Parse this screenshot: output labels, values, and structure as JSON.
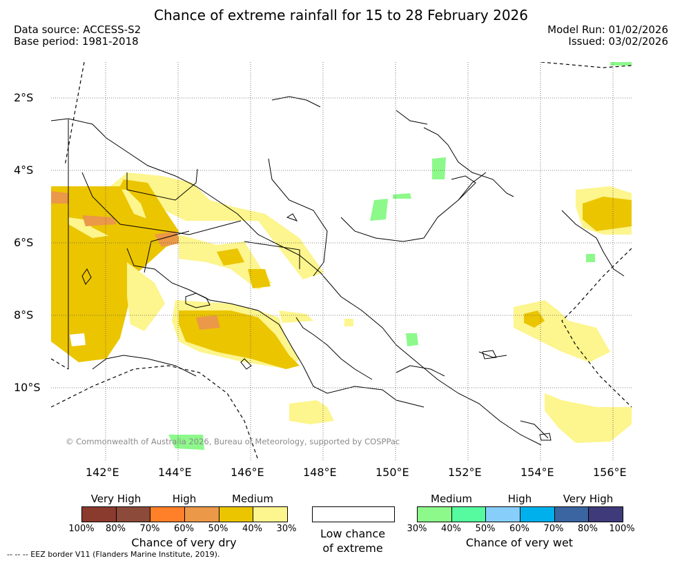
{
  "header": {
    "title": "Chance of extreme rainfall for 15 to 28 February 2026",
    "data_source": "Data source: ACCESS-S2",
    "base_period": "Base period: 1981-2018",
    "model_run": "Model Run: 01/02/2026",
    "issued": "Issued: 03/02/2026"
  },
  "map": {
    "lat_labels": [
      "2°S",
      "4°S",
      "6°S",
      "8°S",
      "10°S"
    ],
    "lon_labels": [
      "142°E",
      "144°E",
      "146°E",
      "148°E",
      "150°E",
      "152°E",
      "154°E",
      "156°E"
    ],
    "copyright": "© Commonwealth of Australia 2026, Bureau of Meteorology, supported by COSPPac"
  },
  "legend": {
    "dry": {
      "levels": [
        "Very High",
        "High",
        "Medium"
      ],
      "colors": [
        "#8b3a2e",
        "#8b4a3a",
        "#ff8029",
        "#eb9848",
        "#ebc500",
        "#fdf58d"
      ],
      "ticks": [
        "100%",
        "80%",
        "70%",
        "60%",
        "50%",
        "40%",
        "30%"
      ],
      "caption": "Chance of very dry"
    },
    "low": {
      "caption_line1": "Low chance",
      "caption_line2": "of extreme"
    },
    "wet": {
      "levels": [
        "Medium",
        "High",
        "Very High"
      ],
      "colors": [
        "#8cf98a",
        "#55fb9e",
        "#87cefa",
        "#00b0ed",
        "#3a65a0",
        "#3f3b7b"
      ],
      "ticks": [
        "30%",
        "40%",
        "50%",
        "60%",
        "70%",
        "80%",
        "100%"
      ],
      "caption": "Chance of very wet"
    }
  },
  "footnote": "--  --  -- EEZ border V11 (Flanders Marine Institute, 2019)."
}
